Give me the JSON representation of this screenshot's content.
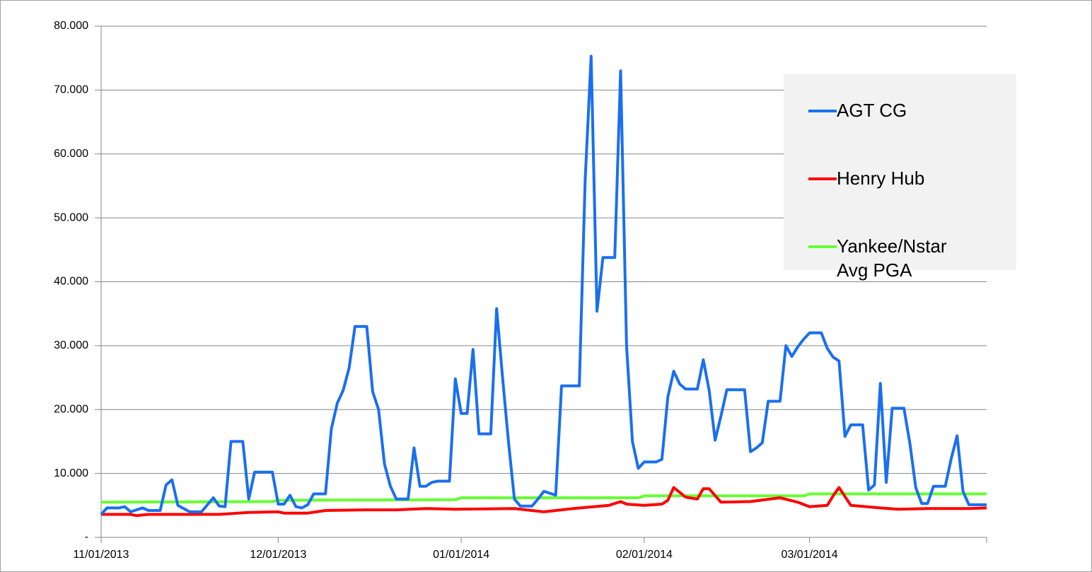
{
  "chart_data": {
    "type": "line",
    "xlim": [
      "11/01/2013",
      "03/31/2014"
    ],
    "xticks": [
      "11/01/2013",
      "12/01/2013",
      "01/01/2014",
      "02/01/2014",
      "03/01/2014"
    ],
    "ylim": [
      0,
      80
    ],
    "yticks": [
      {
        "value": 0,
        "label": "-"
      },
      {
        "value": 10,
        "label": "10.000"
      },
      {
        "value": 20,
        "label": "20.000"
      },
      {
        "value": 30,
        "label": "30.000"
      },
      {
        "value": 40,
        "label": "40.000"
      },
      {
        "value": 50,
        "label": "50.000"
      },
      {
        "value": 60,
        "label": "60.000"
      },
      {
        "value": 70,
        "label": "70.000"
      },
      {
        "value": 80,
        "label": "80.000"
      }
    ],
    "grid": true,
    "legend": "right",
    "series": [
      {
        "name": "AGT CG",
        "color": "#1a6ff0",
        "x": [
          "11/01/2013",
          "11/02/2013",
          "11/04/2013",
          "11/05/2013",
          "11/06/2013",
          "11/08/2013",
          "11/09/2013",
          "11/11/2013",
          "11/12/2013",
          "11/13/2013",
          "11/14/2013",
          "11/16/2013",
          "11/18/2013",
          "11/20/2013",
          "11/21/2013",
          "11/22/2013",
          "11/23/2013",
          "11/25/2013",
          "11/26/2013",
          "11/27/2013",
          "11/30/2013",
          "12/01/2013",
          "12/02/2013",
          "12/03/2013",
          "12/04/2013",
          "12/05/2013",
          "12/06/2013",
          "12/07/2013",
          "12/09/2013",
          "12/10/2013",
          "12/11/2013",
          "12/12/2013",
          "12/13/2013",
          "12/14/2013",
          "12/16/2013",
          "12/17/2013",
          "12/18/2013",
          "12/19/2013",
          "12/20/2013",
          "12/21/2013",
          "12/23/2013",
          "12/24/2013",
          "12/25/2013",
          "12/26/2013",
          "12/27/2013",
          "12/28/2013",
          "12/30/2013",
          "12/31/2013",
          "01/01/2014",
          "01/02/2014",
          "01/03/2014",
          "01/04/2014",
          "01/06/2014",
          "01/07/2014",
          "01/08/2014",
          "01/09/2014",
          "01/10/2014",
          "01/11/2014",
          "01/13/2014",
          "01/14/2014",
          "01/15/2014",
          "01/17/2014",
          "01/18/2014",
          "01/21/2014",
          "01/22/2014",
          "01/23/2014",
          "01/24/2014",
          "01/25/2014",
          "01/27/2014",
          "01/28/2014",
          "01/29/2014",
          "01/30/2014",
          "01/31/2014",
          "02/01/2014",
          "02/03/2014",
          "02/04/2014",
          "02/05/2014",
          "02/06/2014",
          "02/07/2014",
          "02/08/2014",
          "02/10/2014",
          "02/11/2014",
          "02/12/2014",
          "02/13/2014",
          "02/14/2014",
          "02/15/2014",
          "02/18/2014",
          "02/19/2014",
          "02/20/2014",
          "02/21/2014",
          "02/22/2014",
          "02/24/2014",
          "02/25/2014",
          "02/26/2014",
          "02/27/2014",
          "02/28/2014",
          "03/01/2014",
          "03/03/2014",
          "03/04/2014",
          "03/05/2014",
          "03/06/2014",
          "03/07/2014",
          "03/08/2014",
          "03/10/2014",
          "03/11/2014",
          "03/12/2014",
          "03/13/2014",
          "03/14/2014",
          "03/15/2014",
          "03/17/2014",
          "03/18/2014",
          "03/19/2014",
          "03/20/2014",
          "03/21/2014",
          "03/22/2014",
          "03/24/2014",
          "03/25/2014",
          "03/26/2014",
          "03/27/2014",
          "03/28/2014",
          "03/31/2014"
        ],
        "values": [
          3.6,
          4.6,
          4.6,
          4.8,
          4,
          4.6,
          4.2,
          4.2,
          8.2,
          9,
          5,
          4,
          4,
          6.2,
          4.9,
          4.8,
          15,
          15,
          6,
          10.2,
          10.2,
          5.2,
          5.2,
          6.6,
          4.8,
          4.6,
          5.1,
          6.8,
          6.8,
          17,
          21,
          23,
          26.5,
          33,
          33,
          22.8,
          20,
          11.5,
          8,
          6,
          6,
          14,
          8,
          8,
          8.6,
          8.8,
          8.8,
          24.8,
          19.4,
          19.4,
          29.4,
          16.2,
          16.2,
          35.8,
          25,
          15,
          6,
          4.9,
          4.9,
          6,
          7.2,
          6.6,
          23.7,
          23.7,
          56,
          75.3,
          35.4,
          43.8,
          43.8,
          73,
          30,
          15,
          10.8,
          11.8,
          11.8,
          12.2,
          22,
          26,
          24,
          23.2,
          23.2,
          27.8,
          23,
          15.2,
          19,
          23.1,
          23.1,
          13.4,
          14,
          14.8,
          21.3,
          21.3,
          30,
          28.3,
          29.8,
          31,
          32,
          32,
          29.6,
          28.2,
          27.6,
          15.8,
          17.6,
          17.6,
          7.4,
          8.2,
          24.1,
          8.6,
          20.2,
          20.2,
          14.7,
          7.8,
          5.3,
          5.3,
          8,
          8,
          12.3,
          15.9,
          7.2,
          5.1,
          5.1
        ]
      },
      {
        "name": "Henry Hub",
        "color": "#ff0000",
        "x": [
          "11/01/2013",
          "11/06/2013",
          "11/07/2013",
          "11/09/2013",
          "11/21/2013",
          "11/26/2013",
          "12/01/2013",
          "12/02/2013",
          "12/06/2013",
          "12/09/2013",
          "12/16/2013",
          "12/21/2013",
          "12/26/2013",
          "12/31/2013",
          "01/10/2014",
          "01/15/2014",
          "01/20/2014",
          "01/26/2014",
          "01/28/2014",
          "01/29/2014",
          "02/01/2014",
          "02/04/2014",
          "02/05/2014",
          "02/06/2014",
          "02/08/2014",
          "02/10/2014",
          "02/11/2014",
          "02/12/2014",
          "02/14/2014",
          "02/19/2014",
          "02/24/2014",
          "02/27/2014",
          "03/01/2014",
          "03/04/2014",
          "03/05/2014",
          "03/06/2014",
          "03/08/2014",
          "03/13/2014",
          "03/16/2014",
          "03/21/2014",
          "03/26/2014",
          "03/28/2014",
          "03/31/2014"
        ],
        "values": [
          3.6,
          3.6,
          3.4,
          3.6,
          3.6,
          3.9,
          4,
          3.8,
          3.8,
          4.2,
          4.3,
          4.3,
          4.5,
          4.4,
          4.5,
          4,
          4.5,
          5,
          5.6,
          5.2,
          5,
          5.2,
          5.8,
          7.8,
          6.3,
          6,
          7.6,
          7.6,
          5.5,
          5.6,
          6.2,
          5.5,
          4.8,
          5,
          6.5,
          7.8,
          5,
          4.6,
          4.4,
          4.5,
          4.5,
          4.5,
          4.6
        ]
      },
      {
        "name": "Yankee/Nstar Avg PGA",
        "color": "#66ff33",
        "x": [
          "11/01/2013",
          "11/30/2013",
          "12/01/2013",
          "12/31/2013",
          "01/01/2014",
          "01/31/2014",
          "02/01/2014",
          "02/28/2014",
          "03/01/2014",
          "03/31/2014"
        ],
        "values": [
          5.5,
          5.6,
          5.8,
          5.9,
          6.2,
          6.2,
          6.5,
          6.5,
          6.8,
          6.8
        ]
      }
    ]
  }
}
